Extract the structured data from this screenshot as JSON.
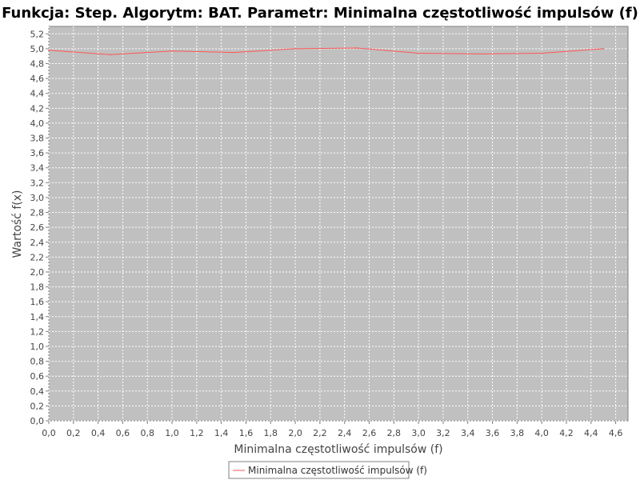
{
  "chart_data": {
    "type": "line",
    "title": "Funkcja: Step. Algorytm: BAT. Parametr: Minimalna częstotliwość impulsów (f)",
    "xlabel": "Minimalna częstotliwość impulsów (f)",
    "ylabel": "Wartość f(x)",
    "xlim": [
      0.0,
      4.7
    ],
    "ylim": [
      0.0,
      5.3
    ],
    "x_ticks": [
      "0,0",
      "0,2",
      "0,4",
      "0,6",
      "0,8",
      "1,0",
      "1,2",
      "1,4",
      "1,6",
      "1,8",
      "2,0",
      "2,2",
      "2,4",
      "2,6",
      "2,8",
      "3,0",
      "3,2",
      "3,4",
      "3,6",
      "3,8",
      "4,0",
      "4,2",
      "4,4",
      "4,6"
    ],
    "y_ticks": [
      "0,0",
      "0,2",
      "0,4",
      "0,6",
      "0,8",
      "1,0",
      "1,2",
      "1,4",
      "1,6",
      "1,8",
      "2,0",
      "2,2",
      "2,4",
      "2,6",
      "2,8",
      "3,0",
      "3,2",
      "3,4",
      "3,6",
      "3,8",
      "4,0",
      "4,2",
      "4,4",
      "4,6",
      "4,8",
      "5,0",
      "5,2"
    ],
    "grid": true,
    "legend_position": "bottom-center",
    "plot_background": "#c0c0c0",
    "series": [
      {
        "name": "Minimalna częstotliwość impulsów (f)",
        "color": "#ff5555",
        "x": [
          0.0,
          0.5,
          1.0,
          1.5,
          2.0,
          2.5,
          3.0,
          3.5,
          4.0,
          4.5
        ],
        "y": [
          4.98,
          4.92,
          4.97,
          4.95,
          5.0,
          5.01,
          4.94,
          4.93,
          4.94,
          5.0
        ]
      }
    ]
  }
}
